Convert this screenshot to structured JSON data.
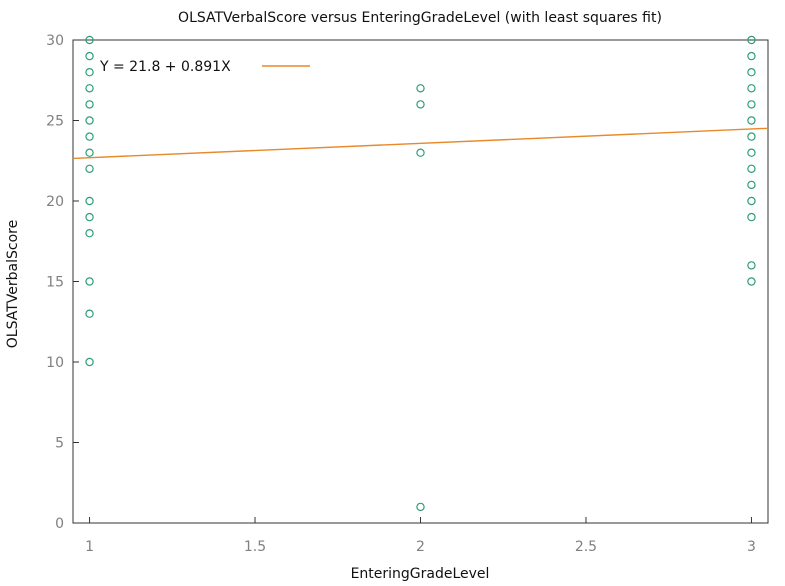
{
  "chart_data": {
    "type": "scatter",
    "title": "OLSATVerbalScore versus EnteringGradeLevel (with least squares fit)",
    "xlabel": "EnteringGradeLevel",
    "ylabel": "OLSATVerbalScore",
    "xlim": [
      0.95,
      3.05
    ],
    "ylim": [
      0,
      30
    ],
    "x_ticks": [
      1,
      1.5,
      2,
      2.5,
      3
    ],
    "x_tick_labels": [
      "1",
      "1.5",
      "2",
      "2.5",
      "3"
    ],
    "y_ticks": [
      0,
      5,
      10,
      15,
      20,
      25,
      30
    ],
    "y_tick_labels": [
      "0",
      "5",
      "10",
      "15",
      "20",
      "25",
      "30"
    ],
    "grid": false,
    "legend": {
      "position": "top-left",
      "entries": [
        "Y = 21.8 + 0.891X"
      ]
    },
    "series": [
      {
        "kind": "points",
        "color": "#2e9e78",
        "points": [
          [
            1,
            30
          ],
          [
            1,
            29
          ],
          [
            1,
            28
          ],
          [
            1,
            27
          ],
          [
            1,
            26
          ],
          [
            1,
            25
          ],
          [
            1,
            24
          ],
          [
            1,
            23
          ],
          [
            1,
            22
          ],
          [
            1,
            20
          ],
          [
            1,
            19
          ],
          [
            1,
            18
          ],
          [
            1,
            15
          ],
          [
            1,
            13
          ],
          [
            1,
            10
          ],
          [
            2,
            27
          ],
          [
            2,
            26
          ],
          [
            2,
            23
          ],
          [
            2,
            1
          ],
          [
            3,
            30
          ],
          [
            3,
            29
          ],
          [
            3,
            28
          ],
          [
            3,
            27
          ],
          [
            3,
            26
          ],
          [
            3,
            25
          ],
          [
            3,
            24
          ],
          [
            3,
            23
          ],
          [
            3,
            22
          ],
          [
            3,
            21
          ],
          [
            3,
            20
          ],
          [
            3,
            19
          ],
          [
            3,
            16
          ],
          [
            3,
            15
          ]
        ]
      },
      {
        "kind": "fit-line",
        "name": "Y = 21.8 + 0.891X",
        "color": "#e8892a",
        "intercept": 21.8,
        "slope": 0.891
      }
    ]
  }
}
